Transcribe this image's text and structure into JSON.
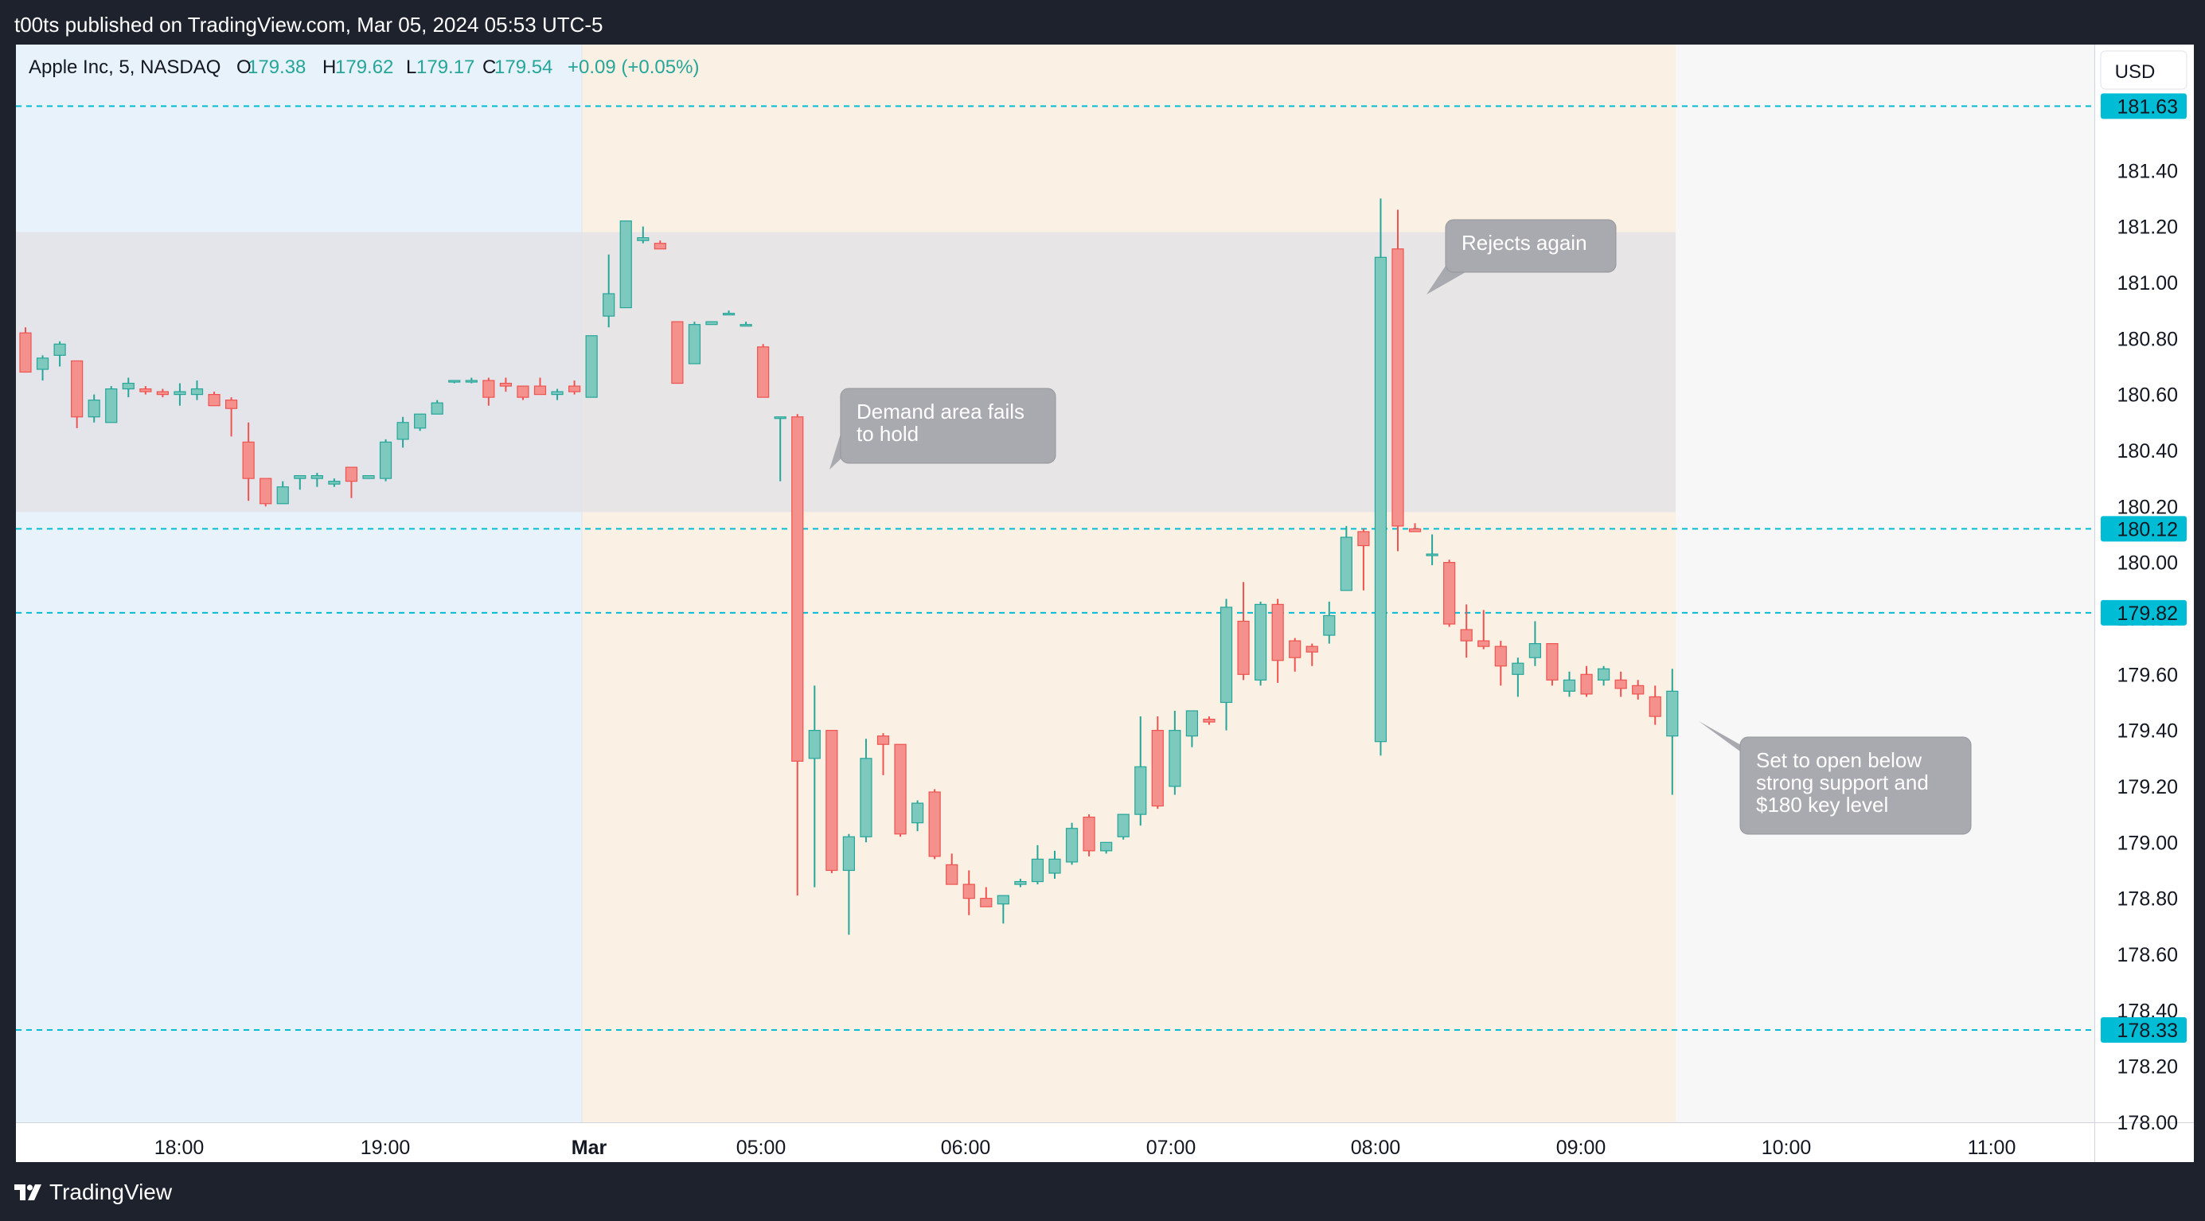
{
  "publisher": "t00ts published on TradingView.com, Mar 05, 2024 05:53 UTC-5",
  "brand": "TradingView",
  "currency": "USD",
  "colors": {
    "up": "#26a69a",
    "down": "#ef5350",
    "up_fill": "#7dc9bd",
    "down_fill": "#f4918c",
    "level_line": "#00bcd4",
    "label_bg": "#00bcd4",
    "callout_bg": "#a9aaaf",
    "zone_bg": "#e3e3e6",
    "pre_session_bg": "#e8f2fa",
    "session_bg": "#faf0e4",
    "post_session_bg": "#f7f7f8"
  },
  "chart_data": {
    "type": "candlestick",
    "legend": {
      "symbol": "Apple Inc, 5, NASDAQ",
      "o_label": "O",
      "o": "179.38",
      "h_label": "H",
      "h": "179.62",
      "l_label": "L",
      "l": "179.17",
      "c_label": "C",
      "c": "179.54",
      "change": "+0.09 (+0.05%)"
    },
    "x_ticks": [
      "18:00",
      "19:00",
      "Mar",
      "05:00",
      "06:00",
      "07:00",
      "08:00",
      "09:00",
      "10:00",
      "11:00"
    ],
    "y_range": [
      178.0,
      181.85
    ],
    "y_ticks": [
      "178.00",
      "178.20",
      "178.40",
      "178.60",
      "178.80",
      "179.00",
      "179.20",
      "179.40",
      "179.60",
      "179.80",
      "180.00",
      "180.20",
      "180.40",
      "180.60",
      "180.80",
      "181.00",
      "181.20",
      "181.40"
    ],
    "levels": [
      {
        "value": 181.63,
        "label": "181.63"
      },
      {
        "value": 180.12,
        "label": "180.12"
      },
      {
        "value": 179.82,
        "label": "179.82"
      },
      {
        "value": 178.33,
        "label": "178.33"
      }
    ],
    "zone": {
      "from": 180.18,
      "to": 181.18
    },
    "annotations": [
      {
        "text": [
          "Demand area fails",
          "to hold"
        ]
      },
      {
        "text": [
          "Rejects again"
        ]
      },
      {
        "text": [
          "Set to open below",
          "strong support and",
          "$180 key level"
        ]
      }
    ],
    "candles": [
      [
        180.82,
        180.84,
        180.68,
        180.68
      ],
      [
        180.69,
        180.74,
        180.65,
        180.73
      ],
      [
        180.74,
        180.79,
        180.7,
        180.78
      ],
      [
        180.72,
        180.72,
        180.48,
        180.52
      ],
      [
        180.52,
        180.6,
        180.5,
        180.58
      ],
      [
        180.5,
        180.63,
        180.5,
        180.62
      ],
      [
        180.62,
        180.66,
        180.59,
        180.64
      ],
      [
        180.62,
        180.63,
        180.6,
        180.61
      ],
      [
        180.61,
        180.62,
        180.59,
        180.6
      ],
      [
        180.6,
        180.64,
        180.56,
        180.61
      ],
      [
        180.6,
        180.65,
        180.58,
        180.62
      ],
      [
        180.6,
        180.61,
        180.56,
        180.56
      ],
      [
        180.58,
        180.59,
        180.45,
        180.55
      ],
      [
        180.43,
        180.5,
        180.22,
        180.3
      ],
      [
        180.3,
        180.3,
        180.2,
        180.21
      ],
      [
        180.21,
        180.29,
        180.21,
        180.27
      ],
      [
        180.3,
        180.31,
        180.26,
        180.31
      ],
      [
        180.3,
        180.32,
        180.27,
        180.31
      ],
      [
        180.28,
        180.3,
        180.27,
        180.29
      ],
      [
        180.34,
        180.34,
        180.23,
        180.29
      ],
      [
        180.3,
        180.31,
        180.3,
        180.31
      ],
      [
        180.3,
        180.44,
        180.29,
        180.43
      ],
      [
        180.44,
        180.52,
        180.41,
        180.5
      ],
      [
        180.48,
        180.53,
        180.47,
        180.53
      ],
      [
        180.53,
        180.58,
        180.53,
        180.57
      ],
      [
        180.65,
        180.65,
        180.64,
        180.65
      ],
      [
        180.65,
        180.66,
        180.64,
        180.65
      ],
      [
        180.65,
        180.66,
        180.56,
        180.59
      ],
      [
        180.64,
        180.66,
        180.61,
        180.63
      ],
      [
        180.63,
        180.63,
        180.58,
        180.59
      ],
      [
        180.63,
        180.66,
        180.6,
        180.6
      ],
      [
        180.6,
        180.62,
        180.58,
        180.61
      ],
      [
        180.63,
        180.65,
        180.6,
        180.61
      ],
      [
        180.59,
        180.81,
        180.59,
        180.81
      ],
      [
        180.88,
        181.1,
        180.84,
        180.96
      ],
      [
        180.91,
        181.22,
        180.91,
        181.22
      ],
      [
        181.15,
        181.2,
        181.14,
        181.16
      ],
      [
        181.14,
        181.15,
        181.12,
        181.12
      ],
      [
        180.86,
        180.86,
        180.64,
        180.64
      ],
      [
        180.71,
        180.86,
        180.71,
        180.85
      ],
      [
        180.85,
        180.86,
        180.85,
        180.86
      ],
      [
        180.89,
        180.9,
        180.89,
        180.89
      ],
      [
        180.85,
        180.86,
        180.85,
        180.85
      ],
      [
        180.77,
        180.78,
        180.59,
        180.59
      ],
      [
        180.52,
        180.52,
        180.29,
        180.52
      ],
      [
        180.52,
        180.53,
        178.81,
        179.29
      ],
      [
        179.3,
        179.56,
        178.84,
        179.4
      ],
      [
        179.4,
        179.4,
        178.89,
        178.9
      ],
      [
        178.9,
        179.03,
        178.67,
        179.02
      ],
      [
        179.02,
        179.37,
        179.0,
        179.3
      ],
      [
        179.38,
        179.39,
        179.24,
        179.35
      ],
      [
        179.35,
        179.35,
        179.02,
        179.03
      ],
      [
        179.07,
        179.15,
        179.04,
        179.14
      ],
      [
        179.18,
        179.19,
        178.94,
        178.95
      ],
      [
        178.92,
        178.96,
        178.85,
        178.85
      ],
      [
        178.85,
        178.9,
        178.74,
        178.8
      ],
      [
        178.8,
        178.84,
        178.77,
        178.77
      ],
      [
        178.78,
        178.81,
        178.71,
        178.81
      ],
      [
        178.85,
        178.87,
        178.84,
        178.86
      ],
      [
        178.86,
        178.99,
        178.85,
        178.94
      ],
      [
        178.89,
        178.97,
        178.87,
        178.94
      ],
      [
        178.93,
        179.07,
        178.92,
        179.05
      ],
      [
        179.09,
        179.1,
        178.95,
        178.97
      ],
      [
        178.97,
        179.0,
        178.96,
        179.0
      ],
      [
        179.02,
        179.1,
        179.01,
        179.1
      ],
      [
        179.1,
        179.45,
        179.06,
        179.27
      ],
      [
        179.4,
        179.45,
        179.12,
        179.13
      ],
      [
        179.2,
        179.47,
        179.17,
        179.4
      ],
      [
        179.38,
        179.47,
        179.34,
        179.47
      ],
      [
        179.44,
        179.45,
        179.42,
        179.43
      ],
      [
        179.5,
        179.87,
        179.4,
        179.84
      ],
      [
        179.79,
        179.93,
        179.58,
        179.6
      ],
      [
        179.58,
        179.86,
        179.56,
        179.85
      ],
      [
        179.85,
        179.87,
        179.57,
        179.65
      ],
      [
        179.72,
        179.73,
        179.61,
        179.66
      ],
      [
        179.7,
        179.71,
        179.63,
        179.68
      ],
      [
        179.74,
        179.86,
        179.71,
        179.81
      ],
      [
        179.9,
        180.13,
        179.9,
        180.09
      ],
      [
        180.11,
        180.12,
        179.9,
        180.06
      ],
      [
        179.36,
        181.3,
        179.31,
        181.09
      ],
      [
        181.12,
        181.26,
        180.04,
        180.13
      ],
      [
        180.12,
        180.14,
        180.11,
        180.11
      ],
      [
        180.03,
        180.1,
        179.99,
        180.03
      ],
      [
        180.0,
        180.01,
        179.77,
        179.78
      ],
      [
        179.76,
        179.85,
        179.66,
        179.72
      ],
      [
        179.72,
        179.83,
        179.69,
        179.7
      ],
      [
        179.7,
        179.72,
        179.56,
        179.63
      ],
      [
        179.6,
        179.66,
        179.52,
        179.64
      ],
      [
        179.66,
        179.79,
        179.63,
        179.71
      ],
      [
        179.71,
        179.71,
        179.56,
        179.58
      ],
      [
        179.54,
        179.61,
        179.52,
        179.58
      ],
      [
        179.6,
        179.63,
        179.52,
        179.53
      ],
      [
        179.58,
        179.63,
        179.56,
        179.62
      ],
      [
        179.58,
        179.61,
        179.52,
        179.55
      ],
      [
        179.56,
        179.58,
        179.51,
        179.53
      ],
      [
        179.52,
        179.56,
        179.42,
        179.45
      ],
      [
        179.38,
        179.62,
        179.17,
        179.54
      ]
    ]
  }
}
